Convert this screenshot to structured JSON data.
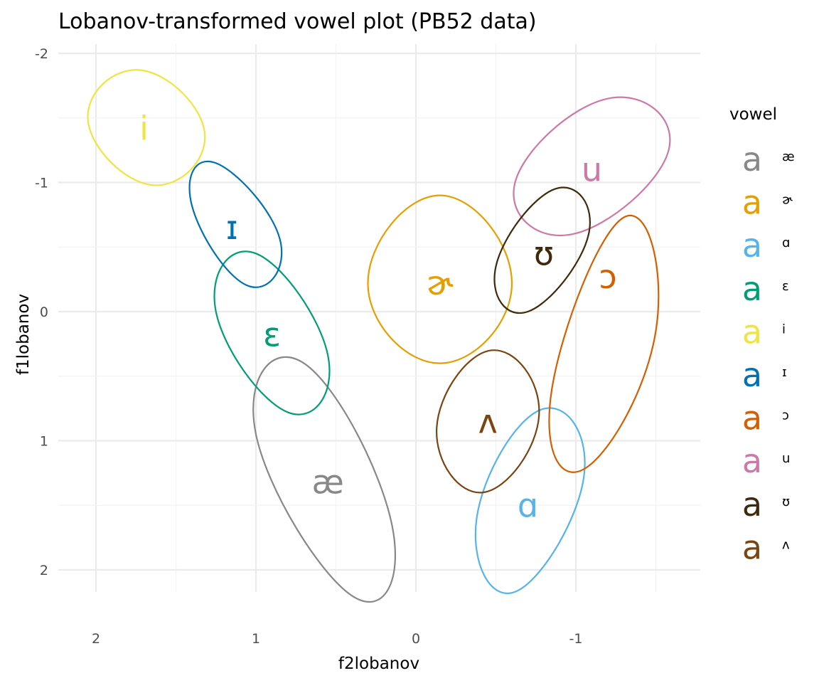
{
  "chart_data": {
    "type": "scatter",
    "title": "Lobanov-transformed vowel plot (PB52 data)",
    "xlabel": "f2lobanov",
    "ylabel": "f1lobanov",
    "x_reversed": true,
    "y_reversed": true,
    "xlim": [
      2.25,
      -1.75
    ],
    "ylim": [
      -2.0,
      2.2
    ],
    "x_ticks": [
      2,
      1,
      0,
      -1
    ],
    "x_tick_labels": [
      "2",
      "1",
      "0",
      "-1"
    ],
    "y_ticks": [
      -2,
      -1,
      0,
      1,
      2
    ],
    "y_tick_labels": [
      "-2",
      "-1",
      "0",
      "1",
      "2"
    ],
    "grid": true,
    "legend": {
      "title": "vowel",
      "position": "right",
      "key_glyph": "a"
    },
    "series": [
      {
        "name": "æ",
        "color": "#888888",
        "center": [
          0.55,
          1.32
        ],
        "ellipse_points": [
          [
            0.7,
            0.4
          ],
          [
            1.0,
            0.95
          ],
          [
            0.4,
            2.2
          ],
          [
            0.15,
            1.65
          ]
        ]
      },
      {
        "name": "ɚ",
        "color": "#E69F00",
        "center": [
          -0.15,
          -0.22
        ],
        "ellipse_points": [
          [
            -0.15,
            -0.9
          ],
          [
            0.3,
            -0.22
          ],
          [
            -0.15,
            0.4
          ],
          [
            -0.6,
            -0.22
          ]
        ]
      },
      {
        "name": "ɑ",
        "color": "#56B4E9",
        "center": [
          -0.7,
          1.5
        ],
        "ellipse_points": [
          [
            -0.78,
            0.76
          ],
          [
            -0.38,
            1.6
          ],
          [
            -0.62,
            2.17
          ],
          [
            -1.05,
            1.28
          ]
        ]
      },
      {
        "name": "ɛ",
        "color": "#009E73",
        "center": [
          0.9,
          0.18
        ],
        "ellipse_points": [
          [
            1.0,
            -0.45
          ],
          [
            1.25,
            0.0
          ],
          [
            0.8,
            0.78
          ],
          [
            0.55,
            0.34
          ]
        ]
      },
      {
        "name": "i",
        "color": "#F0E442",
        "center": [
          1.7,
          -1.42
        ],
        "ellipse_points": [
          [
            1.72,
            -1.87
          ],
          [
            2.05,
            -1.48
          ],
          [
            1.65,
            -0.98
          ],
          [
            1.32,
            -1.38
          ]
        ]
      },
      {
        "name": "ɪ",
        "color": "#0072B2",
        "center": [
          1.15,
          -0.65
        ],
        "ellipse_points": [
          [
            1.25,
            -1.15
          ],
          [
            1.4,
            -0.82
          ],
          [
            1.05,
            -0.2
          ],
          [
            0.85,
            -0.56
          ]
        ]
      },
      {
        "name": "ɔ",
        "color": "#D55E00",
        "center": [
          -1.2,
          -0.27
        ],
        "ellipse_points": [
          [
            -1.3,
            -0.73
          ],
          [
            -1.5,
            0.15
          ],
          [
            -1.05,
            1.22
          ],
          [
            -0.85,
            0.6
          ]
        ]
      },
      {
        "name": "u",
        "color": "#CC79A7",
        "center": [
          -1.1,
          -1.1
        ],
        "ellipse_points": [
          [
            -1.2,
            -1.65
          ],
          [
            -1.58,
            -1.25
          ],
          [
            -0.98,
            -0.6
          ],
          [
            -0.62,
            -1.0
          ]
        ]
      },
      {
        "name": "ʊ",
        "color": "#3F2A0C",
        "center": [
          -0.8,
          -0.45
        ],
        "ellipse_points": [
          [
            -0.87,
            -0.95
          ],
          [
            -1.08,
            -0.6
          ],
          [
            -0.7,
            0.0
          ],
          [
            -0.5,
            -0.35
          ]
        ]
      },
      {
        "name": "ʌ",
        "color": "#7A4510",
        "center": [
          -0.45,
          0.85
        ],
        "ellipse_points": [
          [
            -0.47,
            0.3
          ],
          [
            -0.77,
            0.8
          ],
          [
            -0.42,
            1.4
          ],
          [
            -0.13,
            0.9
          ]
        ]
      }
    ]
  }
}
